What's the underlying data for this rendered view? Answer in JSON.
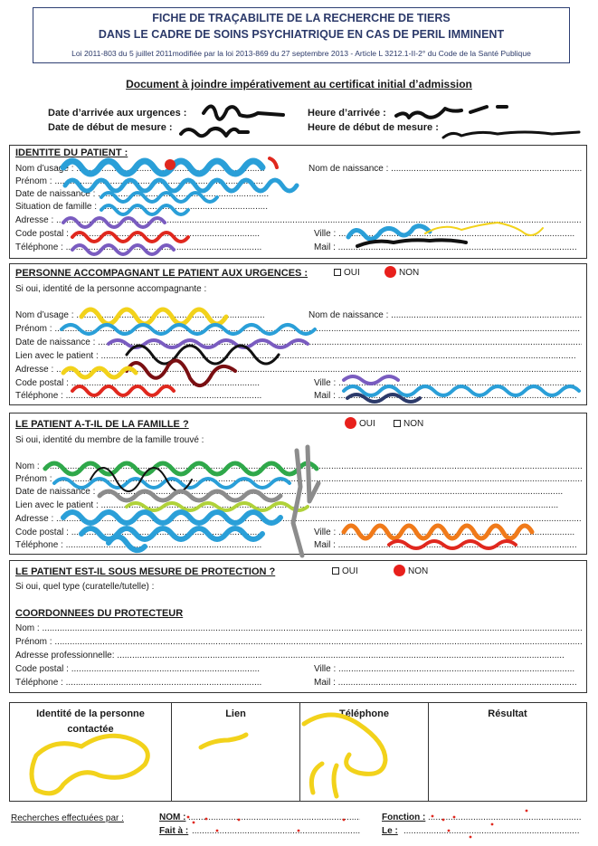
{
  "header": {
    "title_line1": "FICHE DE TRAÇABILITE DE LA RECHERCHE DE TIERS",
    "title_line2": "DANS LE CADRE DE SOINS PSYCHIATRIQUE EN CAS DE PERIL IMMINENT",
    "law": "Loi 2011-803 du 5 juillet 2011modifiée par la loi 2013-869 du 27 septembre 2013 - Article L 3212.1-II-2° du Code de la Santé Publique"
  },
  "document_title": "Document à joindre impérativement au certificat initial d’admission",
  "top_fields": {
    "date_arrivee": "Date d’arrivée aux urgences :",
    "heure_arrivee": "Heure d’arrivée :",
    "date_debut": "Date de début de mesure :",
    "heure_debut": "Heure de début de mesure :"
  },
  "identite": {
    "title": "IDENTITE DU PATIENT :",
    "nom_usage": "Nom d’usage : ...........................................................................",
    "nom_naissance": "Nom de naissance : ......................................................................................",
    "prenom": "Prénom : ...................................................................................",
    "date_naissance": "Date de naissance : ....................................................................",
    "situation": "Situation de famille : ...................................................................",
    "adresse": "Adresse : .................................................................................................................................................................................................................",
    "code_postal": "Code postal : ...........................................................................",
    "ville": "Ville : ..............................................................................................",
    "telephone": "Téléphone : ..............................................................................",
    "mail": "Mail : ..............................................................................................."
  },
  "accompagnant": {
    "title": "PERSONNE ACCOMPAGNANT LE PATIENT AUX URGENCES :",
    "oui": "OUI",
    "non": "NON",
    "intro": "Si oui, identité de la personne accompagnante :",
    "nom_usage": "Nom d’usage : ...........................................................................",
    "nom_naissance": "Nom de naissance : ......................................................................................",
    "prenom": "Prénom : .................................................................................................................................................................................................................",
    "date_naissance": "Date de naissance : .................................................................................................................................................................................................",
    "lien": "Lien avec le patient : .............................................................................................................................................................................................",
    "adresse": "Adresse : .................................................................................................................................................................................................................",
    "code_postal": "Code postal : ...........................................................................",
    "ville": "Ville : ..............................................................................................",
    "telephone": "Téléphone : ..............................................................................",
    "mail": "Mail : ..............................................................................................."
  },
  "famille": {
    "title": "LE PATIENT A-T-IL DE LA FAMILLE ?",
    "oui": "OUI",
    "non": "NON",
    "intro": "Si oui, identité du membre de la famille trouvé :",
    "nom": "Nom : .........................................................................................................................................................................................................................",
    "prenom": "Prénom : .....................................................................................................................................................................................................................",
    "date_naissance": "Date de naissance : .........................................................................................................................................................................................",
    "lien": "Lien avec le patient : ......................................................................................................................................................................................",
    "adresse": "Adresse : ...................................................................................................................................................................................................................",
    "code_postal": "Code postal : ...........................................................................",
    "ville": "Ville : ..............................................................................................",
    "telephone": "Téléphone : ..............................................................................",
    "mail": "Mail : ..............................................................................................."
  },
  "protection": {
    "title": "LE PATIENT EST-IL SOUS MESURE DE PROTECTION ?",
    "oui": "OUI",
    "non": "NON",
    "intro": "Si oui, quel type (curatelle/tutelle) :",
    "coord_title": "COORDONNEES DU PROTECTEUR",
    "nom": "Nom : .........................................................................................................................................................................................................................",
    "prenom": "Prénom : .....................................................................................................................................................................................................................",
    "adresse_pro": "Adresse professionnelle: ..................................................................................................................................................................................",
    "code_postal": "Code postal : ...........................................................................",
    "ville": "Ville : ..............................................................................................",
    "telephone": "Téléphone : ..............................................................................",
    "mail": "Mail : ..............................................................................................."
  },
  "table": {
    "col1": "Identité de la personne contactée",
    "col2": "Lien",
    "col3": "Téléphone",
    "col4": "Résultat"
  },
  "footer": {
    "recherches": "Recherches effectuées par :",
    "nom": "NOM :",
    "fait_a": "Fait à :",
    "fonction": "Fonction :",
    "le": "Le :",
    "dots": "......................................................................"
  },
  "colors": {
    "header_blue": "#2c3a6a",
    "radio_red": "#e8201c",
    "scribble_blue": "#2a9fd8",
    "scribble_purple": "#7a5cc0",
    "scribble_yellow": "#f2d21b",
    "scribble_red": "#e0281e",
    "scribble_green": "#2fa84a",
    "scribble_orange": "#f07a1a",
    "scribble_darkred": "#7a0f12",
    "scribble_gray": "#8c8c8c"
  }
}
